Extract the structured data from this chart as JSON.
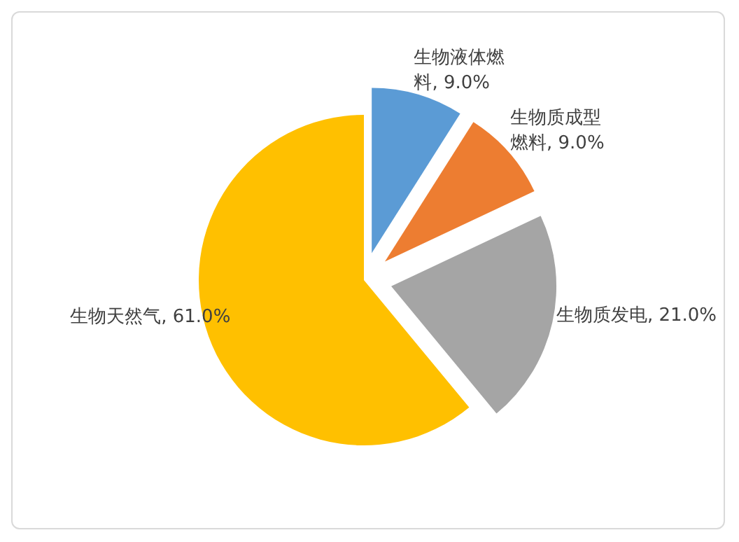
{
  "chart_data": {
    "type": "pie",
    "categories": [
      "生物液体燃料",
      "生物质成型燃料",
      "生物质发电",
      "生物天然气"
    ],
    "values": [
      9,
      9,
      21,
      61
    ],
    "value_labels": [
      "9.0%",
      "9.0%",
      "21.0%",
      "61.0%"
    ],
    "colors": [
      "#5b9bd5",
      "#ed7d31",
      "#a5a5a5",
      "#ffc000"
    ],
    "legend": false
  }
}
